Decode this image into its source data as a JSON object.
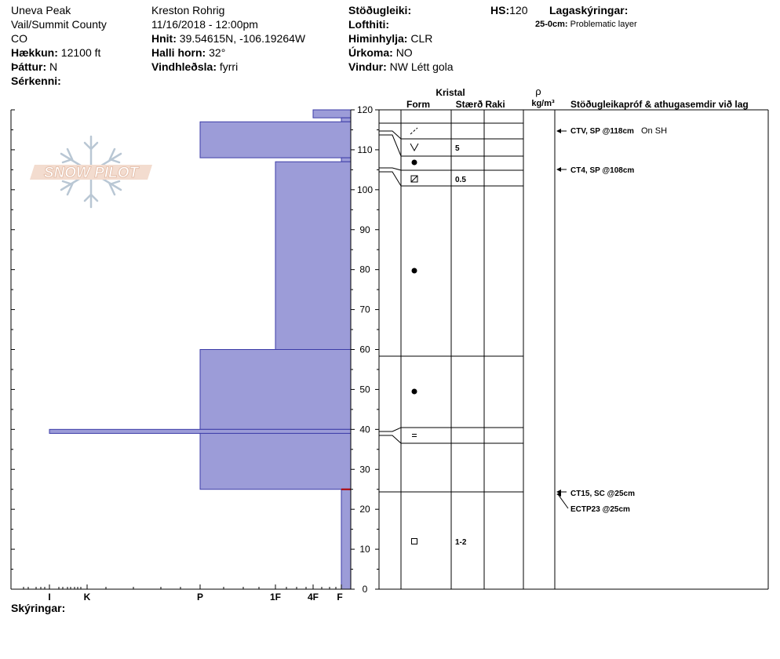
{
  "header": {
    "location": "Uneva Peak",
    "region": "Vail/Summit County",
    "state": "CO",
    "elevation_label": "Hækkun:",
    "elevation": "12100 ft",
    "aspect_label": "Þáttur:",
    "aspect": "N",
    "features_label": "Sérkenni:",
    "observer": "Kreston Rohrig",
    "datetime": "11/16/2018 - 12:00pm",
    "coords_label": "Hnit:",
    "coords": "39.54615N, -106.19264W",
    "slope_label": "Halli horn:",
    "slope": "32°",
    "wind_loading_label": "Vindhleðsla:",
    "wind_loading": "fyrri",
    "stability_label": "Stöðugleiki:",
    "air_temp_label": "Lofthiti:",
    "sky_label": "Himinhylja:",
    "sky": "CLR",
    "precip_label": "Úrkoma:",
    "precip": "NO",
    "wind_label": "Vindur:",
    "wind": "NW Létt gola",
    "hs_label": "HS:",
    "hs": "120",
    "layer_notes_label": "Lagaskýringar:",
    "layer_note_depth": "25-0cm:",
    "layer_note_text": "Problematic layer"
  },
  "logo": {
    "text": "SNOW PILOT"
  },
  "footer": {
    "notes_label": "Skýringar:"
  },
  "columns": {
    "crystal": "Kristal",
    "form": "Form",
    "size": "Stærð",
    "moisture": "Raki",
    "rho": "ρ",
    "density_unit": "kg/m³",
    "tests": "Stöðugleikapróf & athugasemdir við lag"
  },
  "chart_data": {
    "type": "snow-profile",
    "depth_axis": {
      "min": 0,
      "max": 120,
      "ticks": [
        0,
        10,
        20,
        30,
        40,
        50,
        60,
        70,
        80,
        90,
        100,
        110,
        120
      ]
    },
    "hardness_axis": {
      "labels": [
        "I",
        "K",
        "P",
        "1F",
        "4F",
        "F"
      ]
    },
    "hardness_layers": [
      {
        "top": 120,
        "bottom": 118,
        "hardness": "4F"
      },
      {
        "top": 118,
        "bottom": 117,
        "hardness": "F"
      },
      {
        "top": 117,
        "bottom": 108,
        "hardness": "P"
      },
      {
        "top": 108,
        "bottom": 107,
        "hardness": "F"
      },
      {
        "top": 107,
        "bottom": 60,
        "hardness": "1F"
      },
      {
        "top": 60,
        "bottom": 40,
        "hardness": "P"
      },
      {
        "top": 40,
        "bottom": 39,
        "hardness": "I"
      },
      {
        "top": 39,
        "bottom": 25,
        "hardness": "P"
      },
      {
        "top": 25,
        "bottom": 0,
        "hardness": "F"
      }
    ],
    "crystal_layers": [
      {
        "top": 120,
        "bottom": 118,
        "form": "precip-particles",
        "size": ""
      },
      {
        "top": 118,
        "bottom": 117,
        "form": "",
        "size": ""
      },
      {
        "top": 117,
        "bottom": 112,
        "form": "depth-hoar",
        "size": "5"
      },
      {
        "top": 112,
        "bottom": 108,
        "form": "rounded",
        "size": ""
      },
      {
        "top": 108,
        "bottom": 107,
        "form": "",
        "size": ""
      },
      {
        "top": 107,
        "bottom": 104,
        "form": "faceted-rounded",
        "size": "0.5"
      },
      {
        "top": 104,
        "bottom": 60,
        "form": "rounded",
        "size": ""
      },
      {
        "top": 60,
        "bottom": 40,
        "form": "rounded",
        "size": ""
      },
      {
        "top": 40,
        "bottom": 39,
        "form": "ice-crust",
        "size": ""
      },
      {
        "top": 39,
        "bottom": 25,
        "form": "",
        "size": ""
      },
      {
        "top": 25,
        "bottom": 0,
        "form": "faceted",
        "size": "1-2"
      }
    ],
    "tests": [
      {
        "depth": 118,
        "text": "CTV, SP @118cm",
        "comment": "On SH"
      },
      {
        "depth": 108,
        "text": "CT4, SP @108cm",
        "comment": ""
      },
      {
        "depth": 25,
        "text": "CT15, SC @25cm",
        "comment": ""
      },
      {
        "depth": 25,
        "text": "ECTP23 @25cm",
        "comment": ""
      }
    ]
  }
}
